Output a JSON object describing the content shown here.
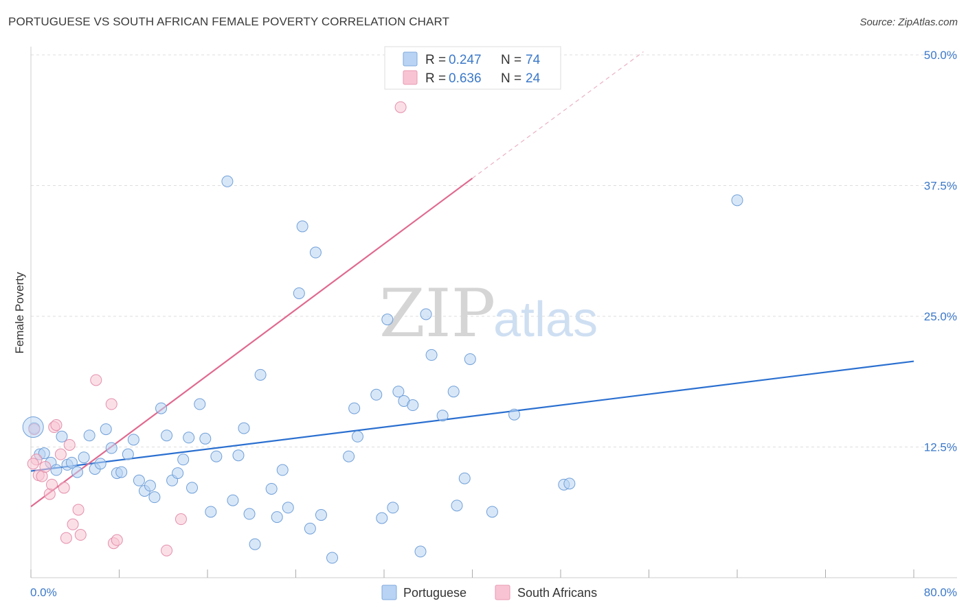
{
  "title": "PORTUGUESE VS SOUTH AFRICAN FEMALE POVERTY CORRELATION CHART",
  "source": "Source: ZipAtlas.com",
  "watermark": {
    "zip": "ZIP",
    "atlas": "atlas"
  },
  "colors": {
    "blue": "#3b78c9",
    "blue_fill": "#b8d3f3",
    "blue_line": "#2a6fd0",
    "pink": "#e0698f",
    "pink_fill": "#f8c4d3",
    "grid": "#dddddd"
  },
  "legend": {
    "r_label": "R =",
    "n_label": "N =",
    "portuguese": {
      "r": "0.247",
      "n": "74"
    },
    "south_african": {
      "r": "0.636",
      "n": "24"
    }
  },
  "chart_data": {
    "type": "scatter",
    "title": "PORTUGUESE VS SOUTH AFRICAN FEMALE POVERTY CORRELATION CHART",
    "xlabel": "",
    "ylabel": "Female Poverty",
    "xlim": [
      0,
      80
    ],
    "ylim": [
      0,
      50
    ],
    "x_tick_labels": [
      "0.0%",
      "80.0%"
    ],
    "y_ticks": [
      12.5,
      25,
      37.5,
      50
    ],
    "y_tick_labels": [
      "12.5%",
      "25.0%",
      "37.5%",
      "50.0%"
    ],
    "grid": true,
    "legend_position": "bottom-center",
    "series": [
      {
        "name": "Portuguese",
        "color": "#b8d3f3",
        "trend": {
          "x": [
            0,
            80
          ],
          "y": [
            10.2,
            20.7
          ],
          "style": "solid"
        },
        "points": [
          [
            0.3,
            14.3
          ],
          [
            0.8,
            11.8
          ],
          [
            1.2,
            11.9
          ],
          [
            1.8,
            11.0
          ],
          [
            2.3,
            10.3
          ],
          [
            2.8,
            13.5
          ],
          [
            3.3,
            10.8
          ],
          [
            3.7,
            11.0
          ],
          [
            4.2,
            10.1
          ],
          [
            4.8,
            11.5
          ],
          [
            5.3,
            13.6
          ],
          [
            5.8,
            10.4
          ],
          [
            6.3,
            10.9
          ],
          [
            6.8,
            14.2
          ],
          [
            7.3,
            12.4
          ],
          [
            7.8,
            10.0
          ],
          [
            8.2,
            10.1
          ],
          [
            8.8,
            11.8
          ],
          [
            9.3,
            13.2
          ],
          [
            9.8,
            9.3
          ],
          [
            10.3,
            8.3
          ],
          [
            10.8,
            8.8
          ],
          [
            11.2,
            7.7
          ],
          [
            11.8,
            16.2
          ],
          [
            12.3,
            13.6
          ],
          [
            12.8,
            9.3
          ],
          [
            13.3,
            10.0
          ],
          [
            13.8,
            11.3
          ],
          [
            14.3,
            13.4
          ],
          [
            14.6,
            8.6
          ],
          [
            15.3,
            16.6
          ],
          [
            15.8,
            13.3
          ],
          [
            16.3,
            6.3
          ],
          [
            16.8,
            11.6
          ],
          [
            17.8,
            37.9
          ],
          [
            18.3,
            7.4
          ],
          [
            18.8,
            11.7
          ],
          [
            19.3,
            14.3
          ],
          [
            19.8,
            6.1
          ],
          [
            20.3,
            3.2
          ],
          [
            20.8,
            19.4
          ],
          [
            21.8,
            8.5
          ],
          [
            22.3,
            5.8
          ],
          [
            22.8,
            10.3
          ],
          [
            23.3,
            6.7
          ],
          [
            24.3,
            27.2
          ],
          [
            24.6,
            33.6
          ],
          [
            25.3,
            4.7
          ],
          [
            25.8,
            31.1
          ],
          [
            26.3,
            6.0
          ],
          [
            27.3,
            1.9
          ],
          [
            28.8,
            11.6
          ],
          [
            29.3,
            16.2
          ],
          [
            29.6,
            13.5
          ],
          [
            31.3,
            17.5
          ],
          [
            31.8,
            5.7
          ],
          [
            32.3,
            24.7
          ],
          [
            32.8,
            6.7
          ],
          [
            33.3,
            17.8
          ],
          [
            33.8,
            16.9
          ],
          [
            34.6,
            16.5
          ],
          [
            35.3,
            2.5
          ],
          [
            35.8,
            25.2
          ],
          [
            36.3,
            21.3
          ],
          [
            37.3,
            15.5
          ],
          [
            38.3,
            17.8
          ],
          [
            38.6,
            6.9
          ],
          [
            39.3,
            9.5
          ],
          [
            39.8,
            20.9
          ],
          [
            41.8,
            6.3
          ],
          [
            43.8,
            15.6
          ],
          [
            48.3,
            8.9
          ],
          [
            48.8,
            9.0
          ],
          [
            64.0,
            36.1
          ]
        ]
      },
      {
        "name": "South Africans",
        "color": "#f8c4d3",
        "trend": {
          "x": [
            0,
            40
          ],
          "y": [
            6.8,
            38.2
          ],
          "style": "solid",
          "extension": {
            "x": [
              40,
              55.5
            ],
            "y": [
              38.2,
              50.3
            ],
            "style": "dashed"
          }
        },
        "points": [
          [
            0.3,
            14.2
          ],
          [
            0.5,
            11.3
          ],
          [
            0.7,
            9.8
          ],
          [
            1.0,
            9.7
          ],
          [
            1.3,
            10.6
          ],
          [
            1.7,
            8.0
          ],
          [
            1.9,
            8.9
          ],
          [
            2.1,
            14.4
          ],
          [
            2.3,
            14.6
          ],
          [
            2.7,
            11.8
          ],
          [
            3.0,
            8.6
          ],
          [
            3.2,
            3.8
          ],
          [
            3.5,
            12.7
          ],
          [
            3.8,
            5.1
          ],
          [
            4.3,
            6.5
          ],
          [
            4.5,
            4.1
          ],
          [
            5.9,
            18.9
          ],
          [
            7.3,
            16.6
          ],
          [
            7.5,
            3.3
          ],
          [
            7.8,
            3.6
          ],
          [
            12.3,
            2.6
          ],
          [
            13.6,
            5.6
          ],
          [
            33.5,
            45.0
          ],
          [
            0.2,
            10.9
          ]
        ]
      }
    ]
  },
  "bottom_legend": {
    "portuguese": "Portuguese",
    "south_africans": "South Africans"
  }
}
